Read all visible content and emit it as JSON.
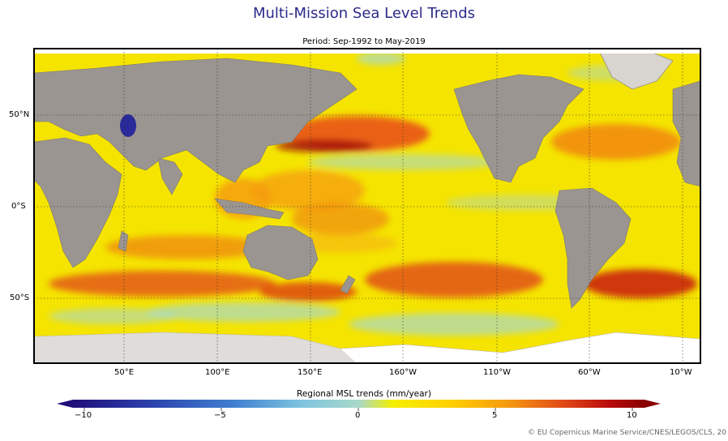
{
  "title": "Multi-Mission Sea Level Trends",
  "subtitle": "Period: Sep-1992 to May-2019",
  "map": {
    "lat_ticks": [
      "50°N",
      "0°S",
      "50°S"
    ],
    "lon_ticks": [
      "50°E",
      "100°E",
      "150°E",
      "160°W",
      "110°W",
      "60°W",
      "10°W"
    ]
  },
  "colorbar": {
    "label": "Regional MSL trends (mm/year)",
    "ticks": [
      "−10",
      "−5",
      "0",
      "5",
      "10"
    ],
    "range": [
      -10,
      10
    ],
    "colors": [
      "#20107a",
      "#2a3ba8",
      "#3f7fd0",
      "#7ec4e0",
      "#a8d8c8",
      "#f5f000",
      "#ffd000",
      "#f59a10",
      "#e04818",
      "#b80a0a",
      "#8a0000"
    ]
  },
  "credit": "© EU Copernicus Marine Service/CNES/LEGOS/CLS, 20",
  "colors": {
    "title": "#2b2b8a",
    "ocean": "#f5e400",
    "land": "#9a9590",
    "ice": "#ffffff"
  }
}
